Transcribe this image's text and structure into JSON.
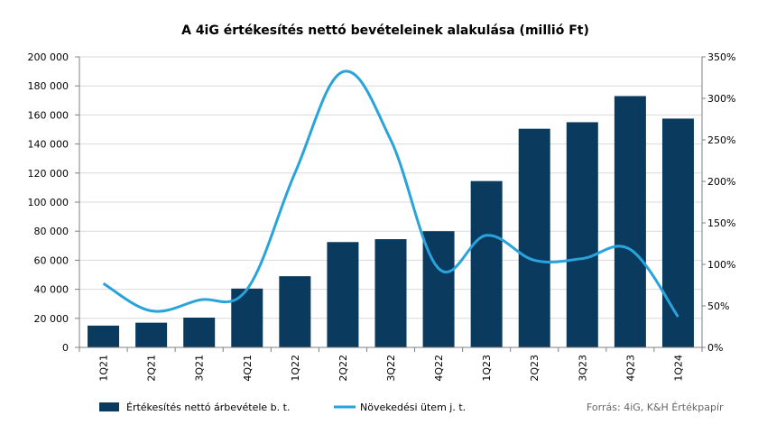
{
  "chart_data": {
    "type": "bar",
    "title": "A 4iG értékesítés nettó bevételeinek  alakulása (millió Ft)",
    "categories": [
      "1Q21",
      "2Q21",
      "3Q21",
      "4Q21",
      "1Q22",
      "2Q22",
      "3Q22",
      "4Q22",
      "1Q23",
      "2Q23",
      "3Q23",
      "4Q23",
      "1Q24"
    ],
    "series": [
      {
        "name": "Értékesítés nettó árbevétele b. t.",
        "type": "bar",
        "axis": "left",
        "values": [
          15000,
          17000,
          20500,
          40500,
          49000,
          72500,
          74500,
          80000,
          114500,
          150500,
          155000,
          173000,
          157500
        ]
      },
      {
        "name": "Növekedési ütem j. t.",
        "type": "line",
        "axis": "right",
        "values": [
          0.77,
          0.44,
          0.57,
          0.7,
          2.1,
          3.32,
          2.5,
          0.95,
          1.35,
          1.05,
          1.07,
          1.18,
          0.37
        ]
      }
    ],
    "y_left": {
      "min": 0,
      "max": 200000,
      "step": 20000,
      "tick_labels": [
        "0",
        "20 000",
        "40 000",
        "60 000",
        "80 000",
        "100 000",
        "120 000",
        "140 000",
        "160 000",
        "180 000",
        "200 000"
      ]
    },
    "y_right": {
      "min": 0,
      "max": 3.5,
      "step": 0.5,
      "tick_labels": [
        "0%",
        "50%",
        "100%",
        "150%",
        "200%",
        "250%",
        "300%",
        "350%"
      ]
    },
    "grid": true,
    "legend_position": "bottom-left",
    "colors": {
      "bar": "#0b3a5f",
      "line": "#29a3dc",
      "grid": "#d9d9d9",
      "axis": "#808080"
    }
  },
  "source_note": "Forrás: 4iG, K&H Értékpapír"
}
